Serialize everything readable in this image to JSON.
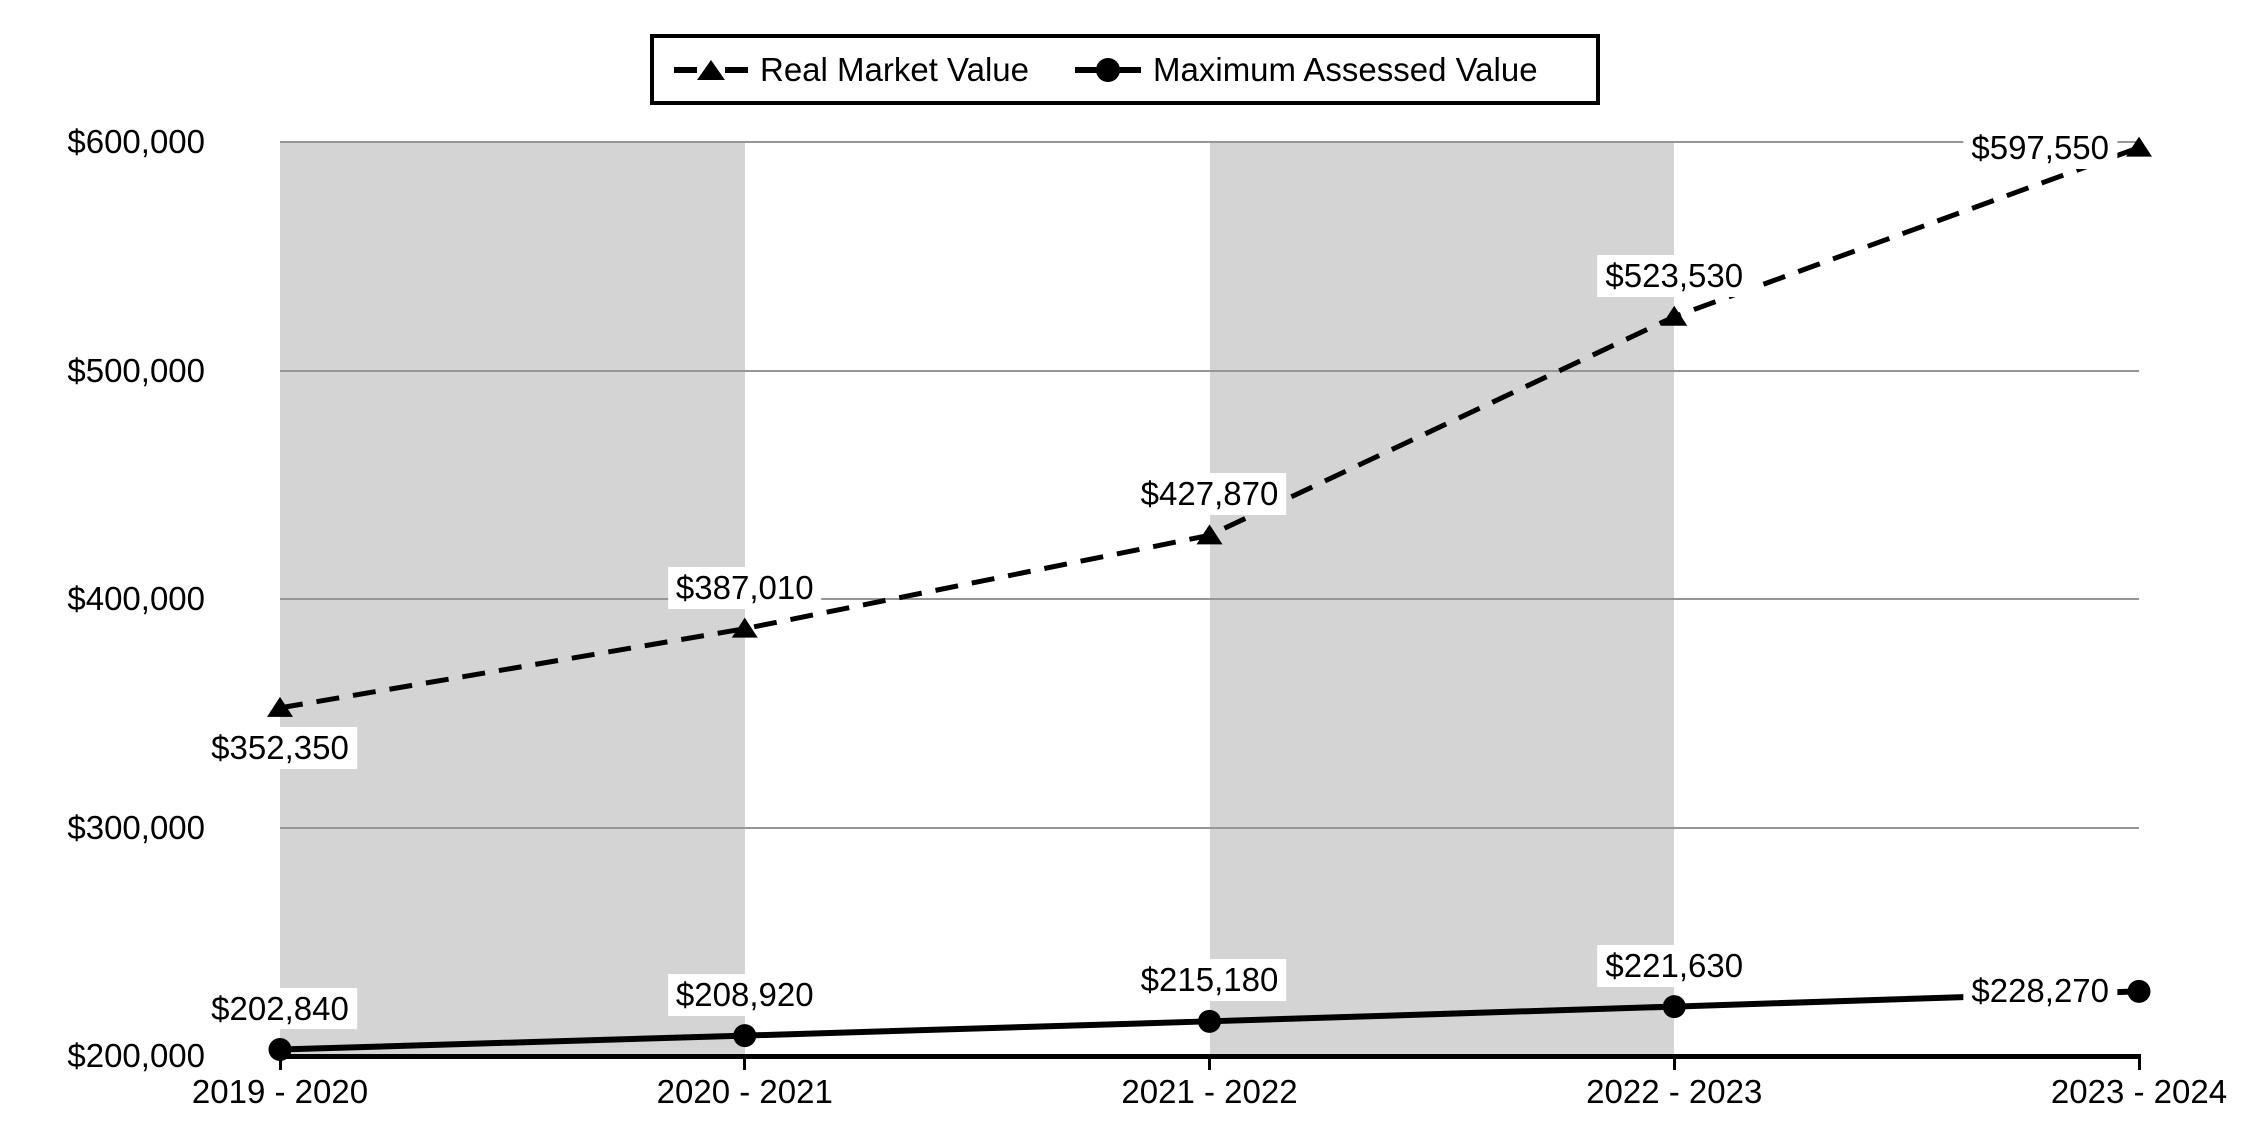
{
  "chart_data": {
    "type": "line",
    "title": "",
    "categories": [
      "2019 - 2020",
      "2020 - 2021",
      "2021 - 2022",
      "2022 - 2023",
      "2023 - 2024"
    ],
    "series": [
      {
        "name": "Real Market Value",
        "line_style": "dashed",
        "marker": "triangle",
        "values": [
          352350,
          387010,
          427870,
          523530,
          597550
        ],
        "data_labels": [
          "$352,350",
          "$387,010",
          "$427,870",
          "$523,530",
          "$597,550"
        ],
        "label_positions": [
          "below",
          "above",
          "above",
          "above",
          "left"
        ]
      },
      {
        "name": "Maximum Assessed Value",
        "line_style": "solid",
        "marker": "circle",
        "values": [
          202840,
          208920,
          215180,
          221630,
          228270
        ],
        "data_labels": [
          "$202,840",
          "$208,920",
          "$215,180",
          "$221,630",
          "$228,270"
        ],
        "label_positions": [
          "above",
          "above",
          "above",
          "above",
          "left"
        ]
      }
    ],
    "y_axis": {
      "min": 200000,
      "max": 600000,
      "tick_interval": 100000,
      "tick_labels": [
        "$200,000",
        "$300,000",
        "$400,000",
        "$500,000",
        "$600,000"
      ]
    },
    "legend_position": "top",
    "grid": true,
    "shaded_column_intervals": [
      [
        0,
        1
      ],
      [
        2,
        3
      ]
    ],
    "colors": {
      "series_line": "#000000",
      "plot_band": "#d4d4d4",
      "gridline": "#969696",
      "axis_line": "#000000",
      "text": "#000000",
      "label_background": "#ffffff",
      "legend_border": "#000000",
      "background": "#ffffff"
    }
  }
}
